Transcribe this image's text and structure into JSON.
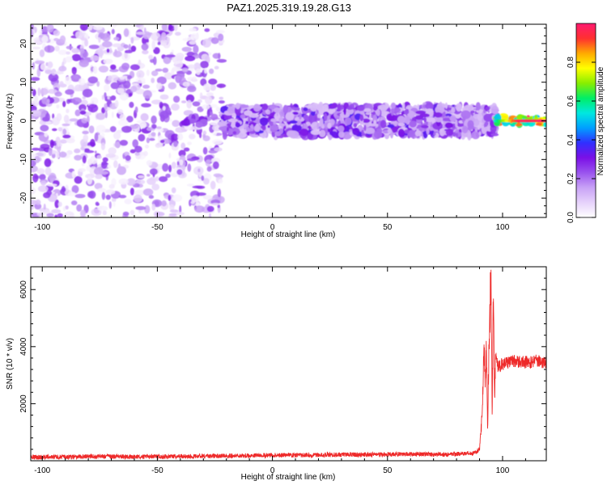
{
  "figure_title": "PAZ1.2025.319.19.28.G13",
  "colors": {
    "signal_line": "#ee2a2a",
    "axis": "#000000",
    "colormap": [
      "#ffffff",
      "#e6d2fb",
      "#c8a2f6",
      "#9a53ee",
      "#7a10e6",
      "#3030ff",
      "#00a0ff",
      "#00e8e0",
      "#00ee66",
      "#88ee00",
      "#ffff00",
      "#ffaa00",
      "#ff3030",
      "#ff1a70"
    ]
  },
  "chart_data": [
    {
      "type": "heatmap",
      "title": "",
      "xlabel": "Height of straight line (km)",
      "ylabel": "Frequency (Hz)",
      "xlim": [
        -105,
        119
      ],
      "ylim": [
        -25,
        25
      ],
      "xticks": [
        -100,
        -50,
        0,
        50,
        100
      ],
      "yticks": [
        -20,
        -10,
        0,
        10,
        20
      ],
      "xtick_labels": [
        "-100",
        "-50",
        "0",
        "50",
        "100"
      ],
      "ytick_labels": [
        "-20",
        "-10",
        "0",
        "10",
        "20"
      ],
      "colorbar": {
        "label": "Normalized spectral amplitude",
        "range": [
          0,
          1
        ],
        "ticks": [
          0.0,
          0.2,
          0.4,
          0.6,
          0.8
        ],
        "tick_labels": [
          "0.0",
          "0.2",
          "0.4",
          "0.6",
          "0.8"
        ]
      },
      "features": [
        {
          "x_range": [
            -105,
            -22
          ],
          "y_range": [
            -25,
            25
          ],
          "amplitude": [
            0.02,
            0.3
          ],
          "description": "scattered noise"
        },
        {
          "x_range": [
            -38,
            -28
          ],
          "y_range": [
            -1,
            1
          ],
          "amplitude": [
            0.2,
            0.3
          ]
        },
        {
          "x_range": [
            -22,
            92
          ],
          "y_range": [
            -4,
            4
          ],
          "amplitude": [
            0.1,
            0.35
          ]
        },
        {
          "x_range": [
            92,
            97
          ],
          "y_range": [
            -4,
            4
          ],
          "amplitude": [
            0.1,
            0.3
          ]
        },
        {
          "x_range": [
            97,
            119
          ],
          "y_range": [
            -1,
            1
          ],
          "amplitude": [
            0.5,
            1.0
          ]
        }
      ]
    },
    {
      "type": "line",
      "title": "",
      "xlabel": "Height of straight line (km)",
      "ylabel": "SNR (10 * v/v)",
      "xlim": [
        -105,
        119
      ],
      "ylim": [
        0,
        6800
      ],
      "xticks": [
        -100,
        -50,
        0,
        50,
        100
      ],
      "yticks": [
        2000,
        4000,
        6000
      ],
      "xtick_labels": [
        "-100",
        "-50",
        "0",
        "50",
        "100"
      ],
      "ytick_labels": [
        "2000",
        "4000",
        "6000"
      ],
      "series": [
        {
          "x": [
            -105,
            -90,
            -75,
            -60,
            -45,
            -30,
            -15,
            0,
            15,
            30,
            45,
            60,
            75,
            88,
            90,
            91,
            92,
            92.5,
            93,
            93.5,
            94,
            94.5,
            95,
            95.5,
            96,
            96.5,
            97,
            98,
            100,
            105,
            110,
            115,
            119
          ],
          "y": [
            110,
            120,
            140,
            120,
            130,
            150,
            160,
            180,
            180,
            200,
            200,
            220,
            200,
            250,
            400,
            1500,
            4100,
            2500,
            4200,
            1200,
            3600,
            5200,
            6750,
            1800,
            6100,
            2400,
            3800,
            3300,
            3400,
            3500,
            3450,
            3500,
            3450
          ]
        }
      ]
    }
  ]
}
